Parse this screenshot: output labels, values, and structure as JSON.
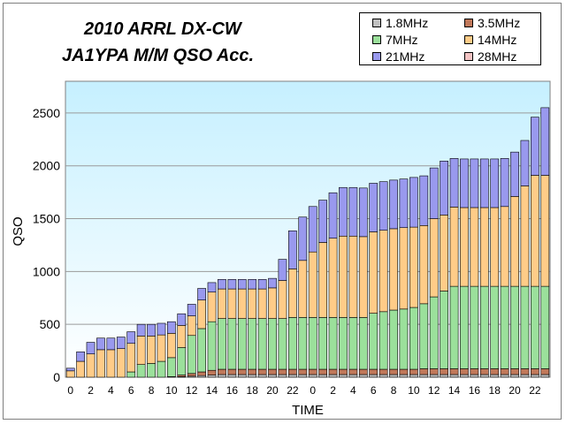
{
  "chart_data": {
    "type": "bar",
    "stacked": true,
    "title_lines": [
      "2010 ARRL DX-CW",
      "JA1YPA  M/M  QSO Acc."
    ],
    "xlabel": "TIME",
    "ylabel": "QSO",
    "ylim": [
      0,
      2800
    ],
    "y_ticks": [
      0,
      500,
      1000,
      1500,
      2000,
      2500
    ],
    "grid": true,
    "legend_position": "top-right",
    "categories": [
      0,
      1,
      2,
      3,
      4,
      5,
      6,
      7,
      8,
      9,
      10,
      11,
      12,
      13,
      14,
      15,
      16,
      17,
      18,
      19,
      20,
      21,
      22,
      23,
      0,
      1,
      2,
      3,
      4,
      5,
      6,
      7,
      8,
      9,
      10,
      11,
      12,
      13,
      14,
      15,
      16,
      17,
      18,
      19,
      20,
      21,
      22,
      23
    ],
    "x_tick_labels": [
      "0",
      "2",
      "4",
      "6",
      "8",
      "10",
      "12",
      "14",
      "16",
      "18",
      "20",
      "22",
      "0",
      "2",
      "4",
      "6",
      "8",
      "10",
      "12",
      "14",
      "16",
      "18",
      "20",
      "22"
    ],
    "series": [
      {
        "name": "1.8MHz",
        "color": "#c0c0c0",
        "values": [
          0,
          0,
          0,
          0,
          0,
          0,
          0,
          0,
          0,
          0,
          0,
          5,
          10,
          15,
          20,
          25,
          25,
          25,
          25,
          25,
          25,
          25,
          25,
          25,
          25,
          25,
          25,
          25,
          25,
          25,
          25,
          25,
          25,
          25,
          25,
          25,
          25,
          25,
          25,
          25,
          25,
          25,
          25,
          25,
          25,
          25,
          25,
          25
        ]
      },
      {
        "name": "3.5MHz",
        "color": "#c0785a",
        "values": [
          0,
          0,
          0,
          0,
          0,
          0,
          0,
          0,
          0,
          0,
          5,
          15,
          25,
          35,
          45,
          50,
          50,
          50,
          50,
          50,
          50,
          50,
          50,
          50,
          50,
          50,
          50,
          50,
          50,
          50,
          50,
          50,
          50,
          50,
          50,
          55,
          55,
          55,
          55,
          55,
          55,
          55,
          55,
          55,
          55,
          55,
          55,
          55
        ]
      },
      {
        "name": "7MHz",
        "color": "#9be09b",
        "values": [
          0,
          0,
          0,
          0,
          0,
          0,
          50,
          120,
          130,
          150,
          180,
          260,
          360,
          410,
          460,
          480,
          480,
          480,
          480,
          480,
          480,
          480,
          490,
          490,
          490,
          490,
          490,
          490,
          490,
          490,
          530,
          545,
          560,
          570,
          585,
          615,
          680,
          735,
          780,
          780,
          780,
          780,
          780,
          780,
          780,
          780,
          780,
          780
        ]
      },
      {
        "name": "14MHz",
        "color": "#ffcc88",
        "values": [
          60,
          150,
          220,
          260,
          260,
          270,
          270,
          270,
          260,
          250,
          230,
          210,
          185,
          270,
          280,
          280,
          280,
          280,
          280,
          280,
          290,
          360,
          460,
          540,
          620,
          710,
          750,
          770,
          770,
          765,
          770,
          770,
          770,
          770,
          760,
          740,
          740,
          720,
          750,
          745,
          745,
          745,
          745,
          755,
          850,
          950,
          1050,
          1050
        ]
      },
      {
        "name": "21MHz",
        "color": "#9999ee",
        "values": [
          25,
          90,
          110,
          110,
          110,
          110,
          110,
          110,
          110,
          110,
          110,
          110,
          110,
          110,
          90,
          90,
          90,
          90,
          90,
          90,
          90,
          200,
          360,
          410,
          430,
          400,
          430,
          460,
          460,
          460,
          460,
          460,
          460,
          460,
          470,
          470,
          480,
          510,
          460,
          460,
          460,
          460,
          460,
          455,
          420,
          430,
          550,
          640
        ]
      },
      {
        "name": "28MHz",
        "color": "#f4c4c4",
        "values": [
          0,
          0,
          0,
          0,
          0,
          0,
          0,
          0,
          0,
          0,
          0,
          0,
          0,
          0,
          0,
          0,
          0,
          0,
          0,
          0,
          0,
          0,
          0,
          0,
          0,
          0,
          0,
          0,
          0,
          0,
          0,
          0,
          0,
          0,
          0,
          0,
          0,
          0,
          0,
          0,
          0,
          0,
          0,
          0,
          0,
          0,
          0,
          0
        ]
      }
    ]
  }
}
